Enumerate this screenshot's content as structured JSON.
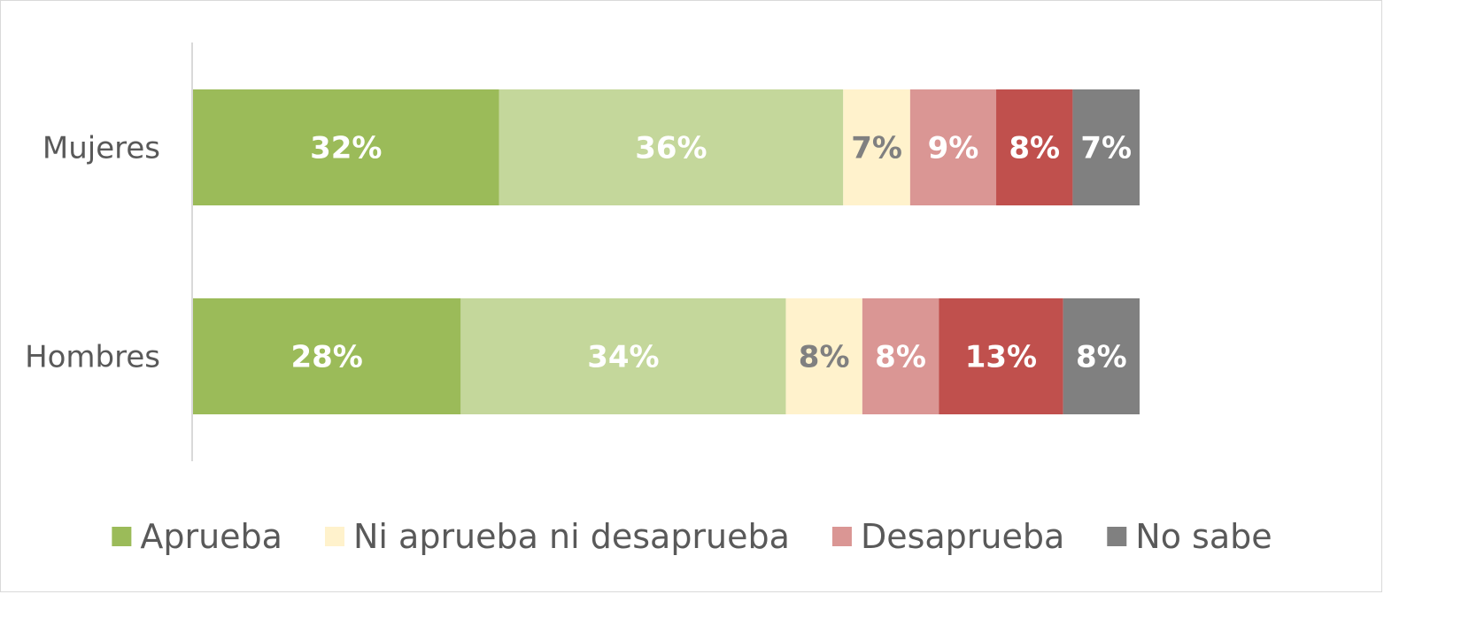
{
  "chart_data": {
    "type": "bar",
    "orientation": "horizontal",
    "stacked": true,
    "percent": true,
    "categories": [
      "Mujeres",
      "Hombres"
    ],
    "series": [
      {
        "values": [
          32,
          28
        ],
        "color": "#9bbb59",
        "label_color": "#ffffff"
      },
      {
        "values": [
          36,
          34
        ],
        "color": "#c4d79b",
        "label_color": "#ffffff"
      },
      {
        "name": "Ni aprueba ni desaprueba",
        "values": [
          7,
          8
        ],
        "color": "#fff2cc",
        "label_color": "#808080"
      },
      {
        "name": "Desaprueba",
        "values": [
          9,
          8
        ],
        "color": "#da9694",
        "label_color": "#ffffff"
      },
      {
        "values": [
          8,
          13
        ],
        "color": "#c0504d",
        "label_color": "#ffffff"
      },
      {
        "name": "No sabe",
        "values": [
          7,
          8
        ],
        "color": "#808080",
        "label_color": "#ffffff"
      }
    ],
    "legend": {
      "position": "bottom",
      "entries": [
        {
          "label": "Aprueba",
          "color": "#9bbb59"
        },
        {
          "label": "Ni aprueba ni desaprueba",
          "color": "#fff2cc"
        },
        {
          "label": "Desaprueba",
          "color": "#da9694"
        },
        {
          "label": "No sabe",
          "color": "#808080"
        }
      ]
    },
    "grid": false
  }
}
